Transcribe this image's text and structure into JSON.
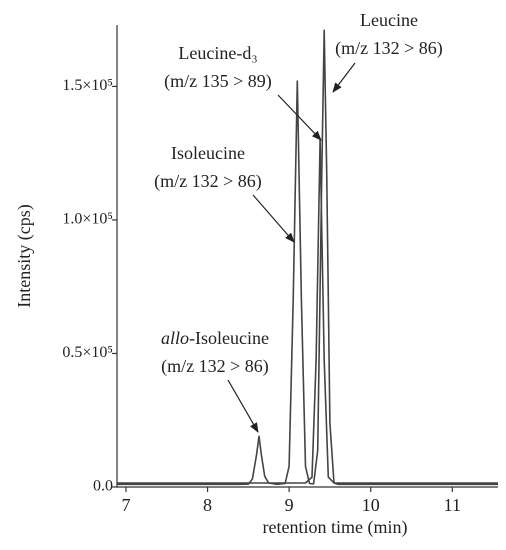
{
  "chart_data": {
    "type": "line",
    "xlabel": "retention time (min)",
    "ylabel": "Intensity (cps)",
    "xlim": [
      6.89,
      11.56
    ],
    "xticks": [
      7,
      8,
      9,
      10,
      11
    ],
    "ylim": [
      0,
      173000
    ],
    "yticks": [
      {
        "value": 0,
        "label": "0.0"
      },
      {
        "value": 50000,
        "label": "0.5×10⁵"
      },
      {
        "value": 100000,
        "label": "1.0×10⁵"
      },
      {
        "value": 150000,
        "label": "1.5×10⁵"
      }
    ],
    "series": [
      {
        "color": "#444444",
        "x": [
          6.89,
          8.4,
          8.5,
          8.55,
          8.6,
          8.63,
          8.66,
          8.7,
          8.75,
          8.85,
          8.95,
          9.0,
          9.05,
          9.1,
          9.15,
          9.2,
          9.25,
          9.3,
          9.35,
          9.4,
          9.43,
          9.46,
          9.5,
          9.55,
          9.6,
          9.7,
          11.56
        ],
        "values": [
          1000,
          1000,
          1100,
          3000,
          12000,
          19000,
          12000,
          4000,
          1500,
          1000,
          1300,
          7700,
          70000,
          152000,
          70000,
          7700,
          1300,
          1200,
          13600,
          118000,
          171000,
          118000,
          24000,
          1500,
          1000,
          1000,
          1000
        ]
      },
      {
        "color": "#555555",
        "x": [
          6.89,
          9.2,
          9.28,
          9.33,
          9.38,
          9.43,
          9.48,
          9.55,
          11.56
        ],
        "values": [
          1500,
          1500,
          3700,
          47500,
          130000,
          47500,
          3700,
          1500,
          1500
        ]
      }
    ],
    "annotations": [
      {
        "label": "Leucine",
        "transition": "(m/z 132 > 86)"
      },
      {
        "label": "Leucine-d₃",
        "transition": "(m/z 135 > 89)"
      },
      {
        "label": "Isoleucine",
        "transition": "(m/z 132 > 86)"
      },
      {
        "label_italic": "allo",
        "label": "-Isoleucine",
        "transition": "(m/z 132 > 86)"
      }
    ]
  }
}
